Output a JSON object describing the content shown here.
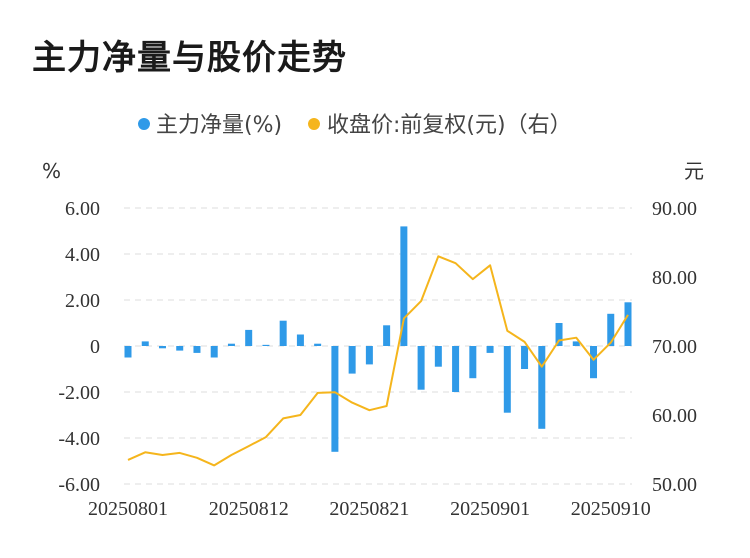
{
  "title": "主力净量与股价走势",
  "chart_data": {
    "type": "bar",
    "title": "主力净量与股价走势",
    "legend": {
      "placement": "top",
      "entries": [
        {
          "label": "主力净量(%)",
          "color": "#2f9ae8"
        },
        {
          "label": "收盘价:前复权(元)（右）",
          "color": "#f5b51c"
        }
      ]
    },
    "left_unit": "%",
    "right_unit": "元",
    "left_axis": {
      "min": -6,
      "max": 6,
      "ticks": [
        "6.00",
        "4.00",
        "2.00",
        "0",
        "-2.00",
        "-4.00",
        "-6.00"
      ]
    },
    "right_axis": {
      "min": 50,
      "max": 90,
      "ticks": [
        "90.00",
        "80.00",
        "70.00",
        "60.00",
        "50.00"
      ]
    },
    "x_tick_labels": [
      {
        "label": "20250801",
        "index": 0
      },
      {
        "label": "20250812",
        "index": 7
      },
      {
        "label": "20250821",
        "index": 14
      },
      {
        "label": "20250901",
        "index": 21
      },
      {
        "label": "20250910",
        "index": 28
      }
    ],
    "grid": true,
    "series": [
      {
        "name": "主力净量(%)",
        "type": "bar",
        "axis": "left",
        "color": "#2f9ae8",
        "values": [
          -0.5,
          0.2,
          -0.1,
          -0.2,
          -0.3,
          -0.5,
          0.1,
          0.7,
          0.05,
          1.1,
          0.5,
          0.1,
          -4.6,
          -1.2,
          -0.8,
          0.9,
          5.2,
          -1.9,
          -0.9,
          -2.0,
          -1.4,
          -0.3,
          -2.9,
          -1.0,
          -3.6,
          1.0,
          0.2,
          -1.4,
          1.4,
          1.9
        ]
      },
      {
        "name": "收盘价:前复权(元)（右）",
        "type": "line",
        "axis": "right",
        "color": "#f5b51c",
        "values": [
          53.5,
          54.6,
          54.2,
          54.5,
          53.8,
          52.7,
          54.2,
          55.5,
          56.8,
          59.5,
          60.0,
          63.2,
          63.3,
          61.8,
          60.7,
          61.3,
          74.0,
          76.5,
          83.0,
          82.0,
          79.7,
          81.7,
          72.2,
          70.6,
          67.0,
          70.8,
          71.2,
          68.0,
          70.5,
          74.5
        ]
      }
    ]
  }
}
